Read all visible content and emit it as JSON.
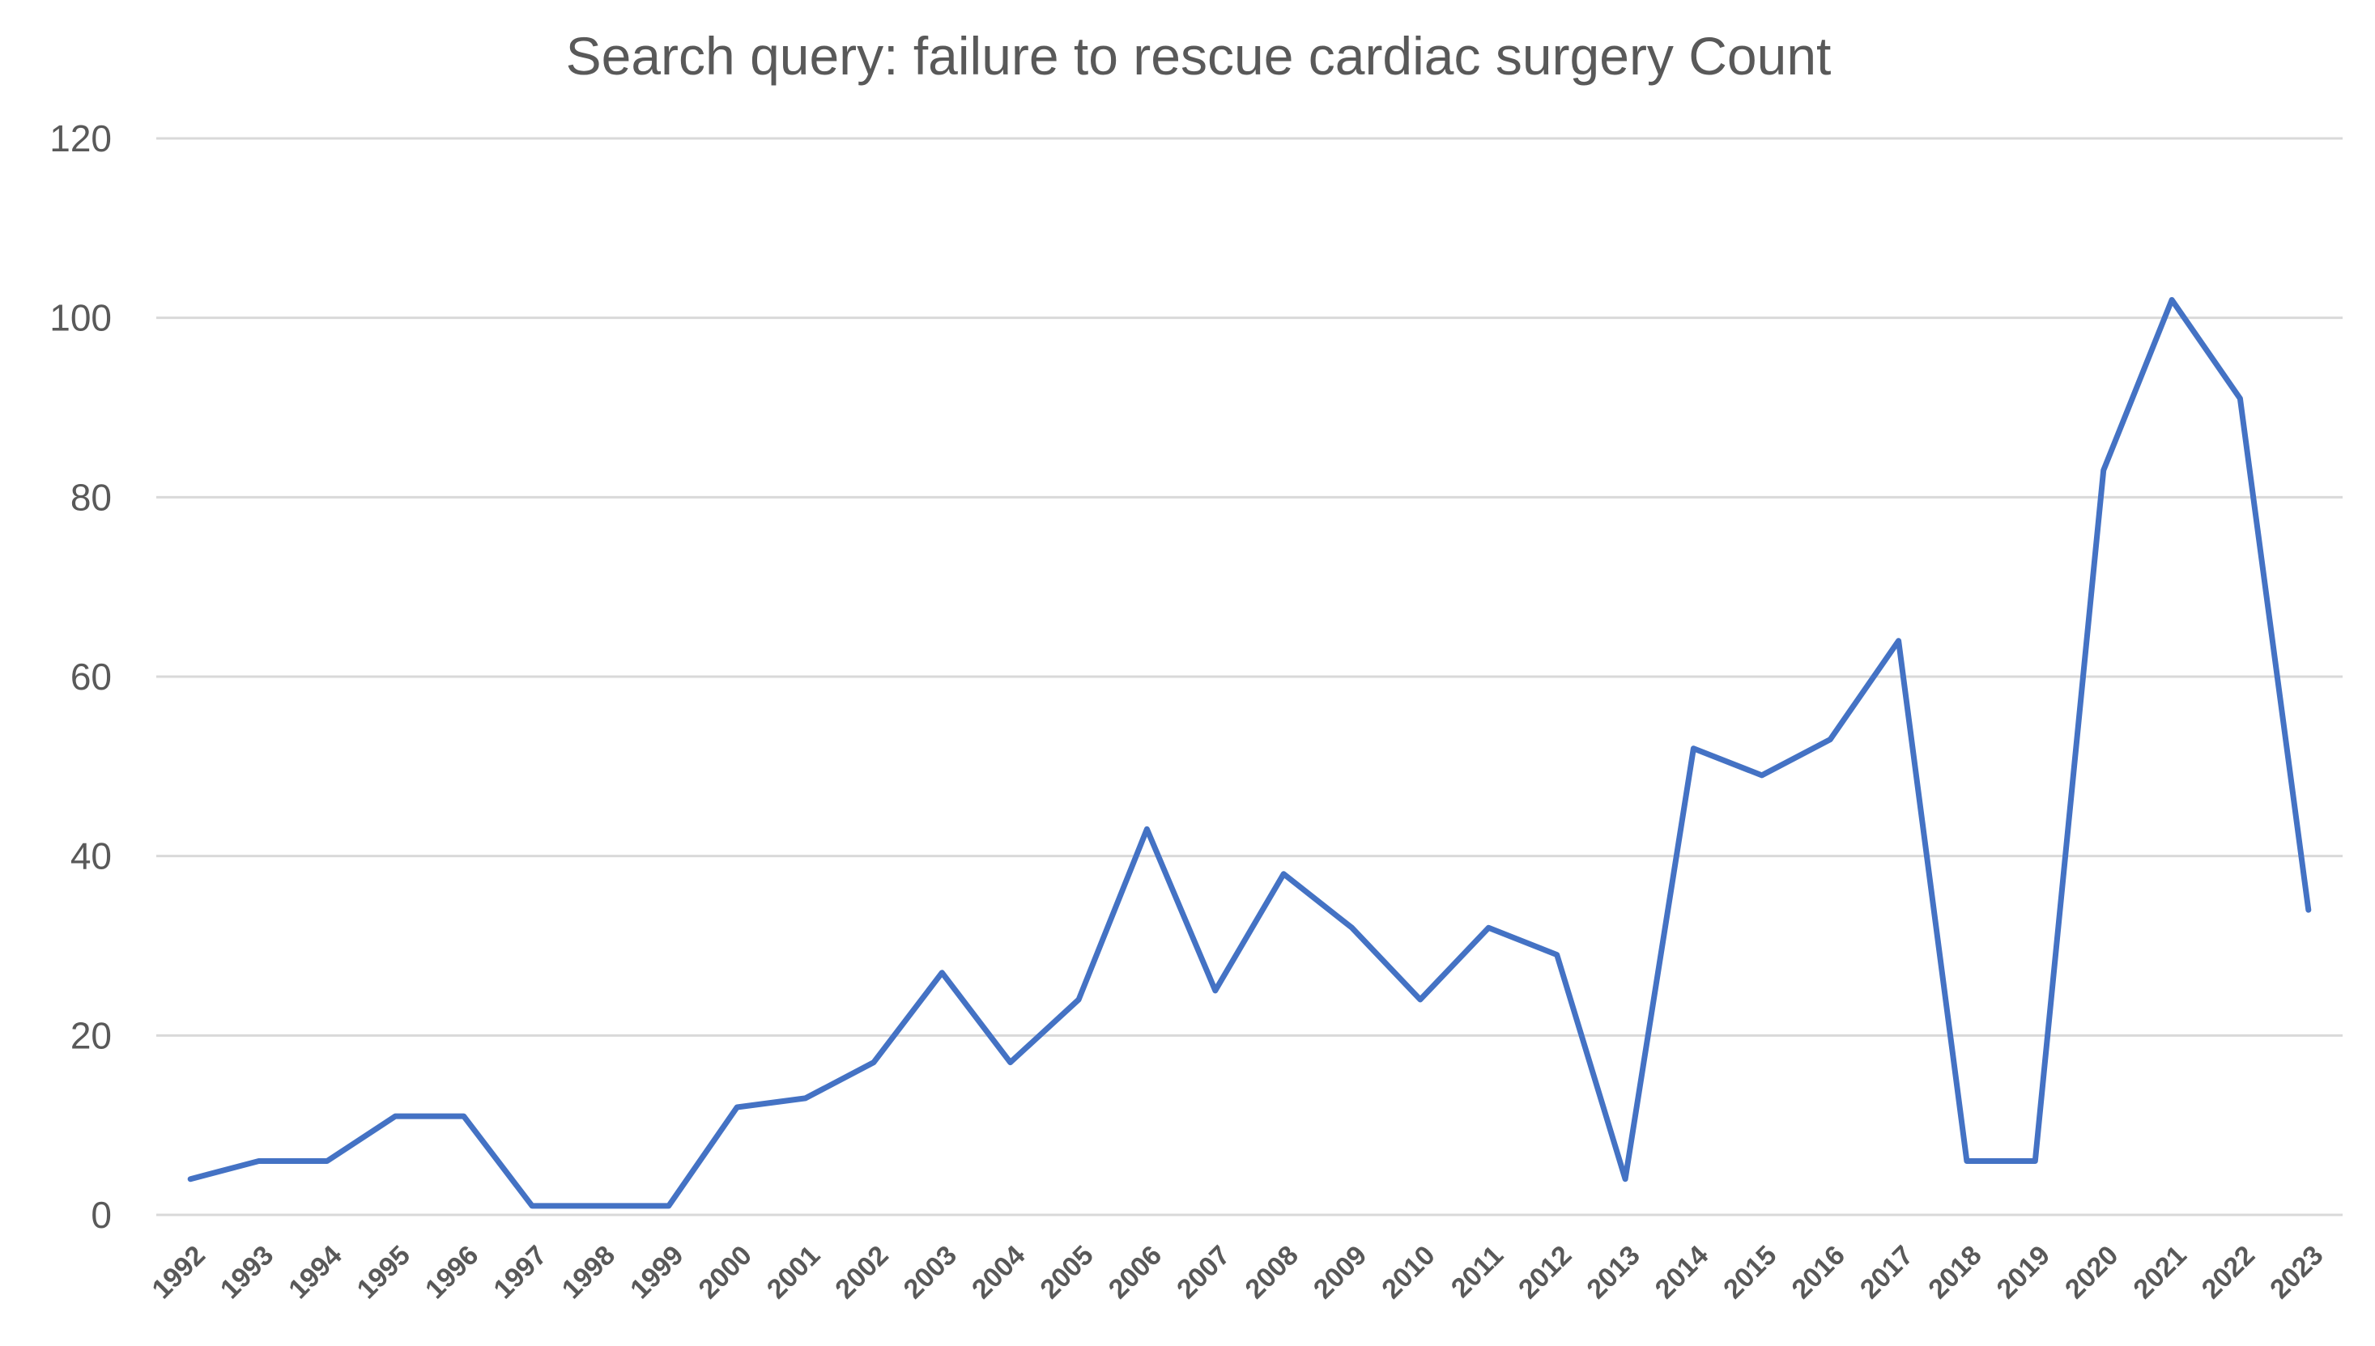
{
  "chart_data": {
    "type": "line",
    "title": "Search query: failure to rescue cardiac surgery Count",
    "xlabel": "",
    "ylabel": "",
    "ylim": [
      0,
      120
    ],
    "yticks": [
      0,
      20,
      40,
      60,
      80,
      100,
      120
    ],
    "grid": true,
    "legend": "none",
    "categories": [
      "1992",
      "1993",
      "1994",
      "1995",
      "1996",
      "1997",
      "1998",
      "1999",
      "2000",
      "2001",
      "2002",
      "2003",
      "2004",
      "2005",
      "2006",
      "2007",
      "2008",
      "2009",
      "2010",
      "2011",
      "2012",
      "2013",
      "2014",
      "2015",
      "2016",
      "2017",
      "2018",
      "2019",
      "2020",
      "2021",
      "2022",
      "2023"
    ],
    "series": [
      {
        "name": "Count",
        "color": "#4472C4",
        "values": [
          4,
          6,
          6,
          11,
          11,
          1,
          1,
          1,
          12,
          13,
          17,
          27,
          17,
          24,
          43,
          25,
          38,
          32,
          24,
          32,
          29,
          4,
          52,
          49,
          53,
          64,
          6,
          6,
          83,
          102,
          91,
          34
        ]
      }
    ]
  }
}
